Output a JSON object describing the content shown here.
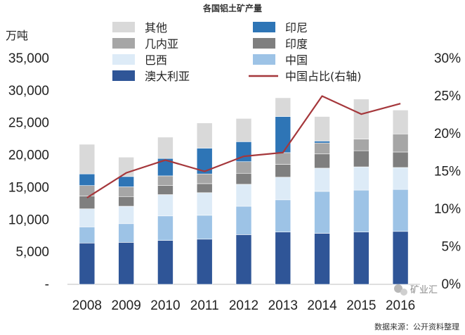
{
  "chart_data": {
    "type": "bar",
    "stacked": true,
    "title": "各国铝土矿产量",
    "ylabel": "万吨",
    "categories": [
      "2008",
      "2009",
      "2010",
      "2011",
      "2012",
      "2013",
      "2014",
      "2015",
      "2016"
    ],
    "ylim": [
      0,
      35000
    ],
    "y2lim": [
      0,
      0.3
    ],
    "y_ticks": [
      "-",
      "5,000",
      "10,000",
      "15,000",
      "20,000",
      "25,000",
      "30,000",
      "35,000"
    ],
    "y2_ticks": [
      "0%",
      "5%",
      "10%",
      "15%",
      "20%",
      "25%",
      "30%"
    ],
    "series": [
      {
        "name": "澳大利亚",
        "color": "#2f5597",
        "values": [
          6400,
          6500,
          6800,
          7000,
          7700,
          8100,
          7900,
          8100,
          8200
        ]
      },
      {
        "name": "中国",
        "color": "#9dc3e6",
        "values": [
          2500,
          2900,
          3800,
          3700,
          4400,
          5000,
          6500,
          6500,
          6500
        ]
      },
      {
        "name": "巴西",
        "color": "#ddebf7",
        "values": [
          2800,
          2700,
          3300,
          3500,
          3400,
          3500,
          3600,
          3600,
          3400
        ]
      },
      {
        "name": "印度",
        "color": "#7f7f7f",
        "values": [
          2000,
          1500,
          1400,
          1400,
          1700,
          2000,
          2200,
          2500,
          2400
        ]
      },
      {
        "name": "几内亚",
        "color": "#a6a6a6",
        "values": [
          1600,
          1500,
          1500,
          1500,
          1800,
          1800,
          1700,
          1800,
          2800
        ]
      },
      {
        "name": "印尼",
        "color": "#2e75b6",
        "values": [
          1800,
          1600,
          2700,
          4000,
          3100,
          5600,
          300,
          0,
          0
        ]
      },
      {
        "name": "其他",
        "color": "#d9d9d9",
        "values": [
          4600,
          3000,
          3300,
          3900,
          3600,
          2900,
          3800,
          6200,
          3700
        ]
      }
    ],
    "line": {
      "name": "中国占比(右轴)",
      "color": "#a5373b",
      "axis": "right",
      "values": [
        0.115,
        0.148,
        0.165,
        0.15,
        0.17,
        0.175,
        0.25,
        0.226,
        0.24
      ]
    },
    "legend": [
      {
        "label": "其他",
        "kind": "bar",
        "color": "#d9d9d9"
      },
      {
        "label": "印尼",
        "kind": "bar",
        "color": "#2e75b6"
      },
      {
        "label": "几内亚",
        "kind": "bar",
        "color": "#a6a6a6"
      },
      {
        "label": "印度",
        "kind": "bar",
        "color": "#7f7f7f"
      },
      {
        "label": "巴西",
        "kind": "bar",
        "color": "#ddebf7"
      },
      {
        "label": "中国",
        "kind": "bar",
        "color": "#9dc3e6"
      },
      {
        "label": "澳大利亚",
        "kind": "bar",
        "color": "#2f5597"
      },
      {
        "label": "中国占比(右轴)",
        "kind": "line",
        "color": "#a5373b"
      }
    ],
    "source": "数据来源：公开资料整理",
    "watermark": "矿业汇"
  }
}
